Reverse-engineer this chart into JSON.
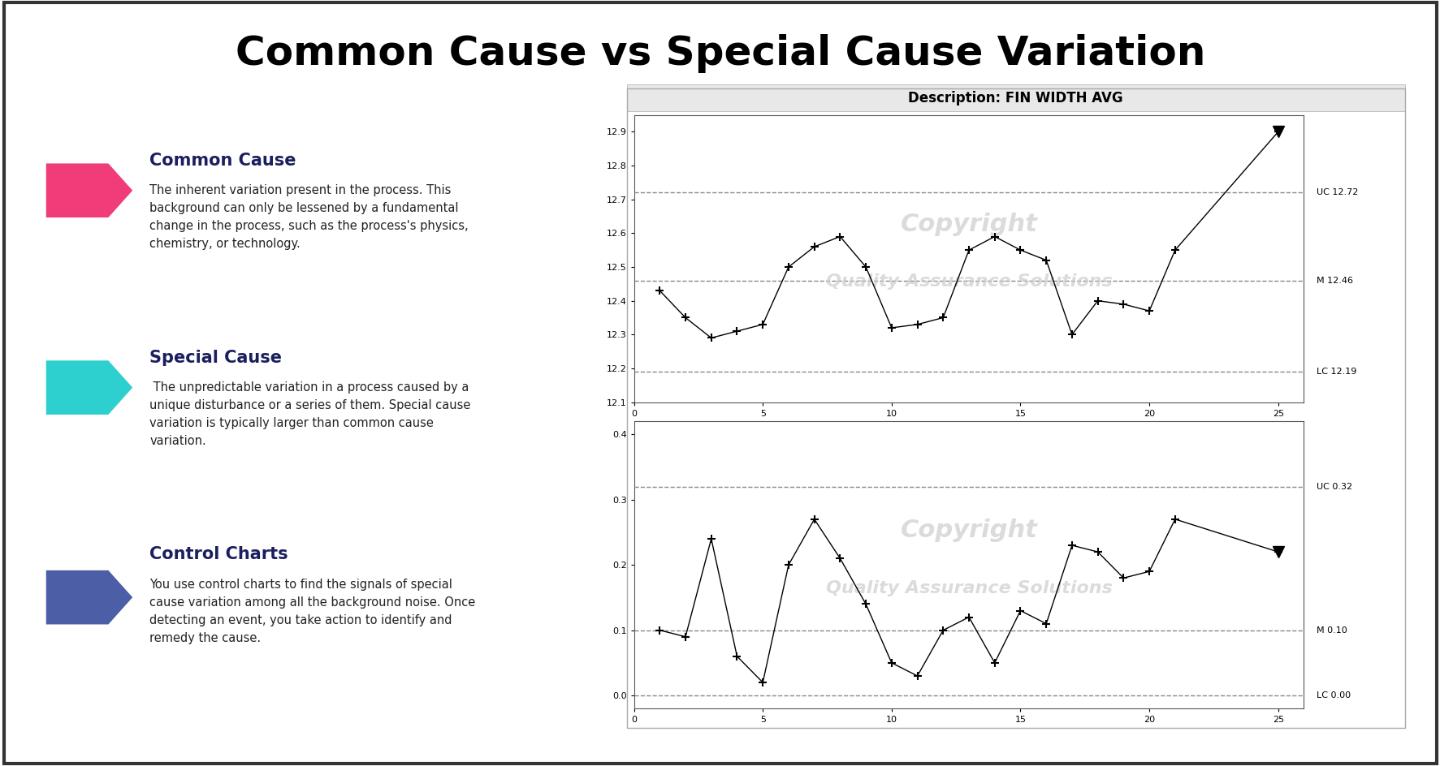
{
  "title": "Common Cause vs Special Cause Variation",
  "sections": [
    {
      "heading": "Common Cause",
      "color": "#F03C78",
      "text": "The inherent variation present in the process. This\nbackground can only be lessened by a fundamental\nchange in the process, such as the process's physics,\nchemistry, or technology."
    },
    {
      "heading": "Special Cause",
      "color": "#2ECFCF",
      "text": " The unpredictable variation in a process caused by a\nunique disturbance or a series of them. Special cause\nvariation is typically larger than common cause\nvariation."
    },
    {
      "heading": "Control Charts",
      "color": "#4B5EA6",
      "text": "You use control charts to find the signals of special\ncause variation among all the background noise. Once\ndetecting an event, you take action to identify and\nremedy the cause."
    }
  ],
  "chart_title": "Description: FIN WIDTH AVG",
  "xbar": {
    "data": [
      12.43,
      12.35,
      12.29,
      12.31,
      12.33,
      12.5,
      12.56,
      12.59,
      12.5,
      12.32,
      12.33,
      12.35,
      12.55,
      12.59,
      12.55,
      12.52,
      12.3,
      12.4,
      12.39,
      12.37,
      12.55,
      12.9
    ],
    "ucl": 12.72,
    "mean": 12.46,
    "lcl": 12.19,
    "yticks": [
      12.1,
      12.2,
      12.3,
      12.4,
      12.5,
      12.6,
      12.7,
      12.8,
      12.9
    ]
  },
  "rbar": {
    "data": [
      0.1,
      0.09,
      0.24,
      0.06,
      0.02,
      0.2,
      0.27,
      0.21,
      0.14,
      0.05,
      0.03,
      0.1,
      0.12,
      0.05,
      0.13,
      0.11,
      0.23,
      0.22,
      0.18,
      0.19,
      0.27,
      0.22
    ],
    "ucl": 0.32,
    "mean": 0.1,
    "lcl": 0.0,
    "yticks": [
      0.0,
      0.1,
      0.2,
      0.3,
      0.4
    ]
  },
  "x_values": [
    1,
    2,
    3,
    4,
    5,
    6,
    7,
    8,
    9,
    10,
    11,
    12,
    13,
    14,
    15,
    16,
    17,
    18,
    19,
    20,
    21,
    25
  ],
  "xlim": [
    0,
    26
  ],
  "xticks": [
    0,
    5,
    10,
    15,
    20,
    25
  ],
  "heading_color": "#1B1F5E",
  "text_color": "#222222",
  "background_color": "#FFFFFF"
}
